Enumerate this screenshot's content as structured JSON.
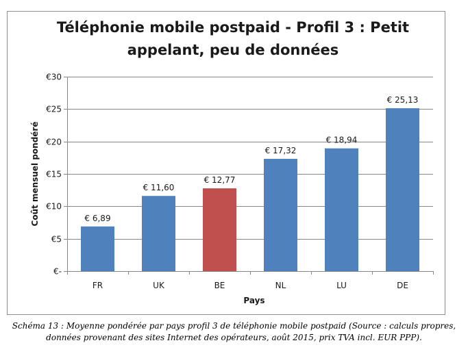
{
  "chart_data": {
    "type": "bar",
    "title_line1": "Téléphonie mobile postpaid - Profil 3 : Petit",
    "title_line2": "appelant, peu de données",
    "xlabel": "Pays",
    "ylabel": "Coût mensuel pondéré",
    "categories": [
      "FR",
      "UK",
      "BE",
      "NL",
      "LU",
      "DE"
    ],
    "values": [
      6.89,
      11.6,
      12.77,
      17.32,
      18.94,
      25.13
    ],
    "value_labels": [
      "€ 6,89",
      "€ 11,60",
      "€ 12,77",
      "€ 17,32",
      "€ 18,94",
      "€ 25,13"
    ],
    "colors": [
      "#4f81bd",
      "#4f81bd",
      "#c0504d",
      "#4f81bd",
      "#4f81bd",
      "#4f81bd"
    ],
    "ylim": [
      0,
      30
    ],
    "yticks": [
      0,
      5,
      10,
      15,
      20,
      25,
      30
    ],
    "ytick_labels": [
      "€-",
      "€5",
      "€10",
      "€15",
      "€20",
      "€25",
      "€30"
    ],
    "grid": true,
    "legend": "none"
  },
  "caption": {
    "line1": "Schéma 13 : Moyenne pondérée par pays profil 3 de téléphonie mobile postpaid (Source : calculs propres,",
    "line2": "données provenant des sites Internet des opérateurs, août 2015, prix TVA incl. EUR PPP)."
  }
}
